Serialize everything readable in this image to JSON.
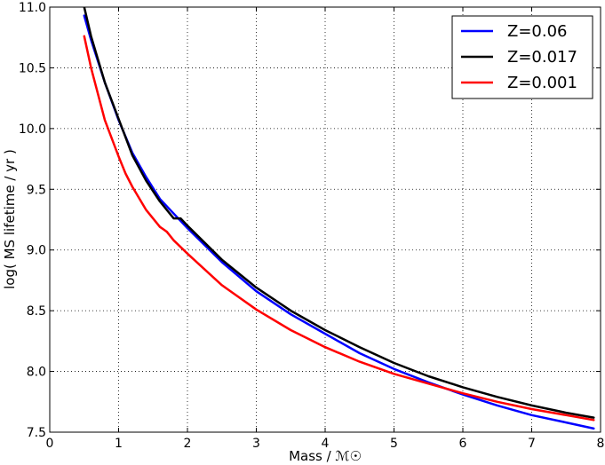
{
  "chart_data": {
    "type": "line",
    "title": "",
    "xlabel": "Mass / ℳ☉",
    "ylabel": "log( MS lifetime / yr )",
    "xlim": [
      0,
      8
    ],
    "ylim": [
      7.5,
      11.0
    ],
    "xticks": [
      0,
      1,
      2,
      3,
      4,
      5,
      6,
      7,
      8
    ],
    "xtick_labels": [
      "0",
      "1",
      "2",
      "3",
      "4",
      "5",
      "6",
      "7",
      "8"
    ],
    "yticks": [
      7.5,
      8.0,
      8.5,
      9.0,
      9.5,
      10.0,
      10.5,
      11.0
    ],
    "ytick_labels": [
      "7.5",
      "8.0",
      "8.5",
      "9.0",
      "9.5",
      "10.0",
      "10.5",
      "11.0"
    ],
    "grid": true,
    "legend_position": "top-right",
    "series": [
      {
        "name": "Z=0.06",
        "color": "#0000ff",
        "x": [
          0.5,
          0.6,
          0.8,
          1.0,
          1.2,
          1.4,
          1.6,
          1.8,
          2.0,
          2.5,
          3.0,
          3.5,
          4.0,
          4.5,
          5.0,
          5.5,
          6.0,
          6.5,
          7.0,
          7.5,
          7.9
        ],
        "y": [
          10.93,
          10.73,
          10.38,
          10.07,
          9.8,
          9.6,
          9.42,
          9.3,
          9.18,
          8.9,
          8.66,
          8.47,
          8.31,
          8.15,
          8.02,
          7.91,
          7.81,
          7.72,
          7.64,
          7.58,
          7.53
        ]
      },
      {
        "name": "Z=0.017",
        "color": "#000000",
        "x": [
          0.5,
          0.6,
          0.8,
          1.0,
          1.2,
          1.4,
          1.6,
          1.8,
          1.9,
          2.0,
          2.5,
          3.0,
          3.5,
          4.0,
          4.5,
          5.0,
          5.5,
          6.0,
          6.5,
          7.0,
          7.5,
          7.9
        ],
        "y": [
          11.0,
          10.76,
          10.38,
          10.08,
          9.78,
          9.57,
          9.4,
          9.26,
          9.26,
          9.2,
          8.92,
          8.69,
          8.5,
          8.34,
          8.2,
          8.07,
          7.96,
          7.87,
          7.79,
          7.72,
          7.66,
          7.62
        ]
      },
      {
        "name": "Z=0.001",
        "color": "#ff0000",
        "x": [
          0.5,
          0.6,
          0.8,
          1.0,
          1.1,
          1.2,
          1.4,
          1.6,
          1.65,
          1.7,
          1.8,
          2.0,
          2.5,
          3.0,
          3.5,
          4.0,
          4.5,
          5.0,
          5.5,
          6.0,
          6.5,
          7.0,
          7.5,
          7.9
        ],
        "y": [
          10.76,
          10.5,
          10.07,
          9.77,
          9.63,
          9.52,
          9.33,
          9.19,
          9.17,
          9.15,
          9.08,
          8.97,
          8.71,
          8.51,
          8.34,
          8.2,
          8.08,
          7.98,
          7.9,
          7.82,
          7.75,
          7.69,
          7.64,
          7.6
        ]
      }
    ]
  }
}
